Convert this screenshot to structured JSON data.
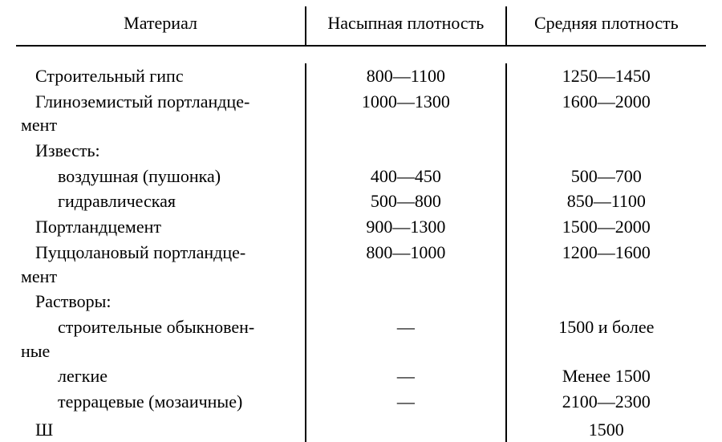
{
  "headers": {
    "material": "Материал",
    "bulk_density": "Насыпная плотность",
    "avg_density": "Средняя плотность"
  },
  "rows": [
    {
      "material_first": "Строительный гипс",
      "material_wrap": "",
      "indent": 1,
      "justify": false,
      "bulk": "800—1100",
      "avg": "1250—1450"
    },
    {
      "material_first": "Глиноземистый портландце-",
      "material_wrap": "мент",
      "indent": 1,
      "justify": true,
      "bulk": "1000—1300",
      "avg": "1600—2000"
    },
    {
      "material_first": "Известь:",
      "material_wrap": "",
      "indent": 1,
      "justify": false,
      "bulk": "",
      "avg": ""
    },
    {
      "material_first": "воздушная (пушонка)",
      "material_wrap": "",
      "indent": 2,
      "justify": false,
      "bulk": "400—450",
      "avg": "500—700"
    },
    {
      "material_first": "гидравлическая",
      "material_wrap": "",
      "indent": 2,
      "justify": false,
      "bulk": "500—800",
      "avg": "850—1100"
    },
    {
      "material_first": "Портландцемент",
      "material_wrap": "",
      "indent": 1,
      "justify": false,
      "bulk": "900—1300",
      "avg": "1500—2000"
    },
    {
      "material_first": "Пуццолановый портландце-",
      "material_wrap": "мент",
      "indent": 1,
      "justify": true,
      "bulk": "800—1000",
      "avg": "1200—1600"
    },
    {
      "material_first": "Растворы:",
      "material_wrap": "",
      "indent": 1,
      "justify": false,
      "bulk": "",
      "avg": ""
    },
    {
      "material_first": "строительные обыкновен-",
      "material_wrap": "ные",
      "indent": 2,
      "justify": true,
      "bulk": "—",
      "avg": "1500 и более"
    },
    {
      "material_first": "легкие",
      "material_wrap": "",
      "indent": 2,
      "justify": false,
      "bulk": "—",
      "avg": "Менее 1500"
    },
    {
      "material_first": "террацевые (мозаичные)",
      "material_wrap": "",
      "indent": 2,
      "justify": false,
      "bulk": "—",
      "avg": "2100—2300"
    }
  ],
  "cutoff": {
    "material_fragment": "Ш",
    "avg_fragment": "1500"
  },
  "colors": {
    "background": "#ffffff",
    "text": "#000000",
    "rule": "#000000"
  }
}
